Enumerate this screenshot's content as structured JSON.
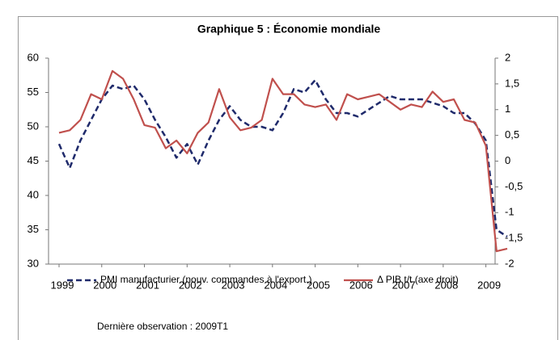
{
  "chart_data": {
    "type": "line",
    "title": "Graphique 5 : Économie mondiale",
    "note": "Dernière observation : 2009T1",
    "categories": [
      "1999",
      null,
      null,
      null,
      "2000",
      null,
      null,
      null,
      "2001",
      null,
      null,
      null,
      "2002",
      null,
      null,
      null,
      "2003",
      null,
      null,
      null,
      "2004",
      null,
      null,
      null,
      "2005",
      null,
      null,
      null,
      "2006",
      null,
      null,
      null,
      "2007",
      null,
      null,
      null,
      "2008",
      null,
      null,
      null,
      "2009",
      null,
      null
    ],
    "series": [
      {
        "name": "PMI manufacturier (nouv. commandes à l'export.)",
        "color": "#1f2a6b",
        "dash": true,
        "axis": "y",
        "values": [
          47.5,
          44,
          48,
          51,
          54,
          56,
          55.5,
          56,
          54,
          51,
          48.5,
          45.5,
          47.5,
          44.5,
          48,
          51,
          53,
          51,
          50,
          50,
          49.5,
          52,
          55.5,
          55,
          56.8,
          54,
          52,
          52,
          51.5,
          52.5,
          53.5,
          54.5,
          54,
          54,
          54,
          53.5,
          53,
          52,
          52,
          50.5,
          48,
          35,
          34
        ]
      },
      {
        "name": "Δ PIB t/t (axe droit)",
        "color": "#c0504d",
        "dash": false,
        "axis": "y2",
        "values": [
          0.55,
          0.6,
          0.8,
          1.3,
          1.2,
          1.75,
          1.6,
          1.2,
          0.7,
          0.65,
          0.25,
          0.4,
          0.15,
          0.55,
          0.75,
          1.4,
          0.85,
          0.6,
          0.65,
          0.8,
          1.6,
          1.3,
          1.3,
          1.1,
          1.05,
          1.1,
          0.8,
          1.3,
          1.2,
          1.25,
          1.3,
          1.15,
          1.0,
          1.1,
          1.05,
          1.35,
          1.15,
          1.2,
          0.8,
          0.75,
          0.3,
          -1.75,
          -1.7
        ]
      }
    ],
    "ylim": [
      30,
      60
    ],
    "yticks": [
      30,
      35,
      40,
      45,
      50,
      55,
      60
    ],
    "y2lim": [
      -2,
      2
    ],
    "y2ticks": [
      -2,
      {
        "value": -1.5,
        "label": "-1,5"
      },
      -1,
      {
        "value": -0.5,
        "label": "-0,5"
      },
      0,
      {
        "value": 0.5,
        "label": "0,5"
      },
      1,
      {
        "value": 1.5,
        "label": "1,5"
      },
      2
    ],
    "grid": false,
    "legend": "bottom"
  }
}
